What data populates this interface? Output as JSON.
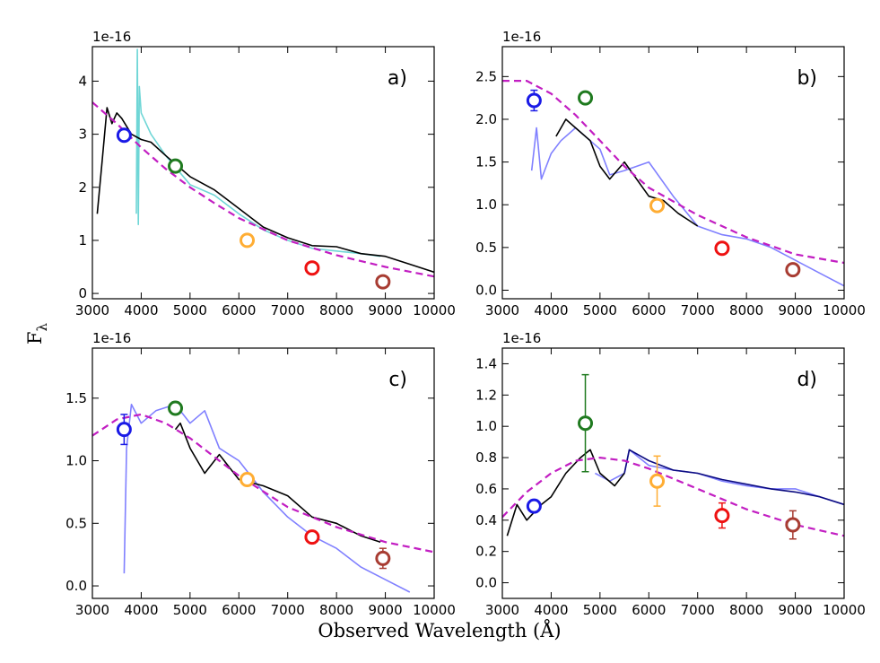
{
  "figure": {
    "xlabel": "Observed Wavelength (Å)",
    "ylabel": "F",
    "ylabel_sub": "λ",
    "scale_note": "1e-16"
  },
  "colors": {
    "u": "#1a1ae6",
    "g": "#1f7a1f",
    "r": "#ffad33",
    "i": "#ee1111",
    "z": "#a83c32",
    "model": "#c21ec2",
    "spec_black": "#000000",
    "spec_cyan": "#6fd6d6",
    "spec_blue": "#8080ff",
    "spec_navy": "#0b0b80"
  },
  "chart_data": [
    {
      "type": "line",
      "label": "a)",
      "xlim": [
        3000,
        10000
      ],
      "ylim": [
        -0.1,
        4.65
      ],
      "xticks": [
        "3000",
        "4000",
        "5000",
        "6000",
        "7000",
        "8000",
        "9000",
        "10000"
      ],
      "yticks": [
        "0",
        "1",
        "2",
        "3",
        "4"
      ],
      "model_curve": {
        "x": [
          3000,
          3500,
          4000,
          4500,
          5000,
          5500,
          6000,
          7000,
          8000,
          9000,
          10000
        ],
        "y": [
          3.6,
          3.2,
          2.75,
          2.35,
          2.0,
          1.7,
          1.42,
          1.0,
          0.72,
          0.5,
          0.32
        ]
      },
      "spectra": [
        {
          "name": "cyan",
          "color_key": "spec_cyan",
          "x": [
            3900,
            3920,
            3940,
            3960,
            4000,
            4200,
            4500,
            5000,
            5500,
            6000,
            6500,
            7000,
            7500,
            8000,
            8500,
            8900
          ],
          "y": [
            1.5,
            4.6,
            1.3,
            3.9,
            3.4,
            3.0,
            2.6,
            2.05,
            1.85,
            1.5,
            1.2,
            1.0,
            0.85,
            0.8,
            0.75,
            0.7
          ]
        },
        {
          "name": "black",
          "color_key": "spec_black",
          "x": [
            3100,
            3200,
            3300,
            3400,
            3500,
            3600,
            3800,
            4000,
            4200,
            4500,
            5000,
            5500,
            6000,
            6500,
            7000,
            7500,
            8000,
            8500,
            9000,
            9500,
            10000
          ],
          "y": [
            1.5,
            2.5,
            3.5,
            3.2,
            3.4,
            3.3,
            3.0,
            2.9,
            2.85,
            2.6,
            2.2,
            1.95,
            1.6,
            1.25,
            1.05,
            0.9,
            0.88,
            0.75,
            0.7,
            0.55,
            0.4
          ]
        }
      ],
      "photometry": [
        {
          "band": "u",
          "x": 3650,
          "y": 2.98,
          "err": 0.1
        },
        {
          "band": "g",
          "x": 4700,
          "y": 2.4,
          "err": 0.05
        },
        {
          "band": "r",
          "x": 6170,
          "y": 1.0,
          "err": 0.05
        },
        {
          "band": "i",
          "x": 7500,
          "y": 0.48,
          "err": 0.05
        },
        {
          "band": "z",
          "x": 8950,
          "y": 0.22,
          "err": 0.05
        }
      ]
    },
    {
      "type": "line",
      "label": "b)",
      "xlim": [
        3000,
        10000
      ],
      "ylim": [
        -0.1,
        2.85
      ],
      "xticks": [
        "3000",
        "4000",
        "5000",
        "6000",
        "7000",
        "8000",
        "9000",
        "10000"
      ],
      "yticks": [
        "0.0",
        "0.5",
        "1.0",
        "1.5",
        "2.0",
        "2.5"
      ],
      "model_curve": {
        "x": [
          3000,
          3500,
          4000,
          4500,
          5000,
          5500,
          6000,
          7000,
          8000,
          9000,
          10000
        ],
        "y": [
          2.45,
          2.45,
          2.3,
          2.05,
          1.75,
          1.45,
          1.2,
          0.88,
          0.62,
          0.42,
          0.32
        ]
      },
      "spectra": [
        {
          "name": "blue",
          "color_key": "spec_blue",
          "x": [
            3600,
            3700,
            3800,
            4000,
            4200,
            4500,
            4800,
            5000,
            5200,
            5500,
            6000,
            6500,
            7000,
            7500,
            8000,
            8500,
            9000,
            9500,
            10000
          ],
          "y": [
            1.4,
            1.9,
            1.3,
            1.6,
            1.75,
            1.9,
            1.75,
            1.65,
            1.35,
            1.4,
            1.5,
            1.1,
            0.75,
            0.65,
            0.6,
            0.5,
            0.35,
            0.2,
            0.05
          ]
        },
        {
          "name": "black",
          "color_key": "spec_black",
          "x": [
            4100,
            4300,
            4500,
            4800,
            5000,
            5200,
            5500,
            6000,
            6300,
            6600,
            7000
          ],
          "y": [
            1.8,
            2.0,
            1.9,
            1.75,
            1.45,
            1.3,
            1.5,
            1.1,
            1.05,
            0.9,
            0.75
          ]
        }
      ],
      "photometry": [
        {
          "band": "u",
          "x": 3650,
          "y": 2.22,
          "err": 0.12
        },
        {
          "band": "g",
          "x": 4700,
          "y": 2.25,
          "err": 0.05
        },
        {
          "band": "r",
          "x": 6170,
          "y": 0.99,
          "err": 0.05
        },
        {
          "band": "i",
          "x": 7500,
          "y": 0.49,
          "err": 0.05
        },
        {
          "band": "z",
          "x": 8950,
          "y": 0.24,
          "err": 0.05
        }
      ]
    },
    {
      "type": "line",
      "label": "c)",
      "xlim": [
        3000,
        10000
      ],
      "ylim": [
        -0.1,
        1.9
      ],
      "xticks": [
        "3000",
        "4000",
        "5000",
        "6000",
        "7000",
        "8000",
        "9000",
        "10000"
      ],
      "yticks": [
        "0.0",
        "0.5",
        "1.0",
        "1.5"
      ],
      "model_curve": {
        "x": [
          3000,
          3500,
          4000,
          4500,
          5000,
          5500,
          6000,
          7000,
          8000,
          9000,
          10000
        ],
        "y": [
          1.2,
          1.33,
          1.37,
          1.3,
          1.18,
          1.03,
          0.88,
          0.63,
          0.47,
          0.35,
          0.27
        ]
      },
      "spectra": [
        {
          "name": "blue",
          "color_key": "spec_blue",
          "x": [
            3650,
            3700,
            3800,
            4000,
            4300,
            4700,
            5000,
            5300,
            5600,
            6000,
            6500,
            7000,
            7500,
            8000,
            8500,
            9000,
            9500
          ],
          "y": [
            0.1,
            1.1,
            1.45,
            1.3,
            1.4,
            1.45,
            1.3,
            1.4,
            1.1,
            1.0,
            0.75,
            0.55,
            0.4,
            0.3,
            0.15,
            0.05,
            -0.05
          ]
        },
        {
          "name": "black",
          "color_key": "spec_black",
          "x": [
            4700,
            4800,
            5000,
            5300,
            5600,
            6000,
            6500,
            7000,
            7500,
            8000,
            8500,
            8900
          ],
          "y": [
            1.25,
            1.3,
            1.1,
            0.9,
            1.05,
            0.85,
            0.8,
            0.72,
            0.55,
            0.5,
            0.4,
            0.35
          ]
        }
      ],
      "photometry": [
        {
          "band": "u",
          "x": 3650,
          "y": 1.25,
          "err": 0.12
        },
        {
          "band": "g",
          "x": 4700,
          "y": 1.42,
          "err": 0.05
        },
        {
          "band": "r",
          "x": 6170,
          "y": 0.85,
          "err": 0.05
        },
        {
          "band": "i",
          "x": 7500,
          "y": 0.39,
          "err": 0.05
        },
        {
          "band": "z",
          "x": 8950,
          "y": 0.22,
          "err": 0.08
        }
      ]
    },
    {
      "type": "line",
      "label": "d)",
      "xlim": [
        3000,
        10000
      ],
      "ylim": [
        -0.1,
        1.5
      ],
      "xticks": [
        "3000",
        "4000",
        "5000",
        "6000",
        "7000",
        "8000",
        "9000",
        "10000"
      ],
      "yticks": [
        "0.0",
        "0.2",
        "0.4",
        "0.6",
        "0.8",
        "1.0",
        "1.2",
        "1.4"
      ],
      "model_curve": {
        "x": [
          3000,
          3500,
          4000,
          4500,
          5000,
          5500,
          6000,
          7000,
          8000,
          9000,
          10000
        ],
        "y": [
          0.42,
          0.58,
          0.7,
          0.78,
          0.8,
          0.78,
          0.73,
          0.6,
          0.47,
          0.37,
          0.3
        ]
      },
      "spectra": [
        {
          "name": "blue",
          "color_key": "spec_blue",
          "x": [
            4900,
            5200,
            5500,
            5600,
            6000,
            6500,
            7000,
            7500,
            8000,
            8500,
            9000,
            9500,
            10000
          ],
          "y": [
            0.7,
            0.65,
            0.7,
            0.85,
            0.75,
            0.72,
            0.7,
            0.65,
            0.62,
            0.6,
            0.6,
            0.55,
            0.5
          ]
        },
        {
          "name": "navy",
          "color_key": "spec_navy",
          "x": [
            5500,
            5600,
            6000,
            6500,
            7000,
            7500,
            8000,
            8500,
            9000,
            9500,
            10000
          ],
          "y": [
            0.7,
            0.85,
            0.78,
            0.72,
            0.7,
            0.66,
            0.63,
            0.6,
            0.58,
            0.55,
            0.5
          ]
        },
        {
          "name": "black",
          "color_key": "spec_black",
          "x": [
            3100,
            3300,
            3500,
            3800,
            4000,
            4300,
            4600,
            4800,
            5000,
            5300,
            5500
          ],
          "y": [
            0.3,
            0.5,
            0.4,
            0.5,
            0.55,
            0.7,
            0.8,
            0.85,
            0.7,
            0.62,
            0.7
          ]
        }
      ],
      "photometry": [
        {
          "band": "u",
          "x": 3650,
          "y": 0.49,
          "err": 0.04
        },
        {
          "band": "g",
          "x": 4700,
          "y": 1.02,
          "err": 0.31
        },
        {
          "band": "r",
          "x": 6170,
          "y": 0.65,
          "err": 0.16
        },
        {
          "band": "i",
          "x": 7500,
          "y": 0.43,
          "err": 0.08
        },
        {
          "band": "z",
          "x": 8950,
          "y": 0.37,
          "err": 0.09
        }
      ]
    }
  ]
}
